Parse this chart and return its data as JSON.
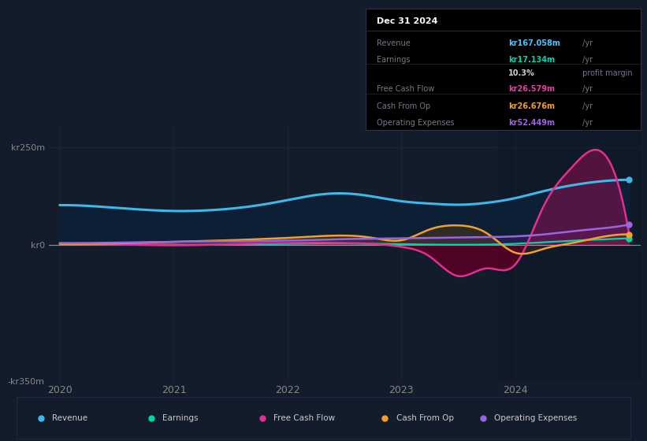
{
  "bg_color": "#131c2b",
  "title_box_bg": "#0a0d14",
  "title_box_border": "#2a3050",
  "info": {
    "date": "Dec 31 2024",
    "rows": [
      {
        "label": "Revenue",
        "value": "kr167.058m",
        "unit": " /yr",
        "value_color": "#4dc3ff"
      },
      {
        "label": "Earnings",
        "value": "kr17.134m",
        "unit": " /yr",
        "value_color": "#00d4aa"
      },
      {
        "label": "",
        "value": "10.3%",
        "unit": " profit margin",
        "value_color": "#cccccc"
      },
      {
        "label": "Free Cash Flow",
        "value": "kr26.579m",
        "unit": " /yr",
        "value_color": "#e040a0"
      },
      {
        "label": "Cash From Op",
        "value": "kr26.676m",
        "unit": " /yr",
        "value_color": "#f0a030"
      },
      {
        "label": "Operating Expenses",
        "value": "kr52.449m",
        "unit": " /yr",
        "value_color": "#9966dd"
      }
    ]
  },
  "t": [
    2020.0,
    2020.25,
    2020.5,
    2020.75,
    2021.0,
    2021.25,
    2021.5,
    2021.75,
    2022.0,
    2022.25,
    2022.5,
    2022.75,
    2023.0,
    2023.25,
    2023.5,
    2023.75,
    2024.0,
    2024.25,
    2024.5,
    2024.75,
    2025.0
  ],
  "revenue": [
    102,
    100,
    95,
    90,
    87,
    88,
    93,
    102,
    115,
    128,
    132,
    124,
    112,
    106,
    103,
    108,
    120,
    138,
    153,
    163,
    167
  ],
  "earnings": [
    2,
    2,
    1,
    1,
    0.5,
    0.5,
    1,
    2,
    3,
    4,
    4,
    3,
    2,
    1,
    0.5,
    1,
    3,
    7,
    11,
    14,
    17
  ],
  "fcf": [
    3,
    2,
    1,
    0,
    -1,
    0,
    2,
    4,
    5,
    6,
    5,
    3,
    -5,
    -30,
    -80,
    -60,
    -50,
    100,
    200,
    240,
    27
  ],
  "cash_op": [
    3,
    3,
    4,
    6,
    8,
    10,
    12,
    15,
    18,
    22,
    24,
    18,
    12,
    40,
    50,
    30,
    -20,
    -10,
    5,
    20,
    27
  ],
  "opex": [
    5,
    5,
    6,
    7,
    8,
    9,
    9,
    10,
    11,
    13,
    15,
    16,
    17,
    18,
    19,
    20,
    22,
    27,
    35,
    42,
    52
  ],
  "ylim": [
    -350,
    300
  ],
  "xlim": [
    2019.9,
    2025.1
  ],
  "ytick_vals": [
    -350,
    0,
    250
  ],
  "ytick_labels": [
    "-kr350m",
    "kr0",
    "kr250m"
  ],
  "xtick_vals": [
    2020,
    2021,
    2022,
    2023,
    2024
  ],
  "xtick_labels": [
    "2020",
    "2021",
    "2022",
    "2023",
    "2024"
  ],
  "colors": {
    "revenue": "#3db8e8",
    "earnings": "#00d4aa",
    "fcf": "#e03090",
    "cash_op": "#f0a030",
    "opex": "#9966dd"
  },
  "grid_color": "#1e2a3a",
  "zero_color": "#dddddd",
  "highlight_x": 2023.85,
  "highlight_color": "#1a2a3a"
}
